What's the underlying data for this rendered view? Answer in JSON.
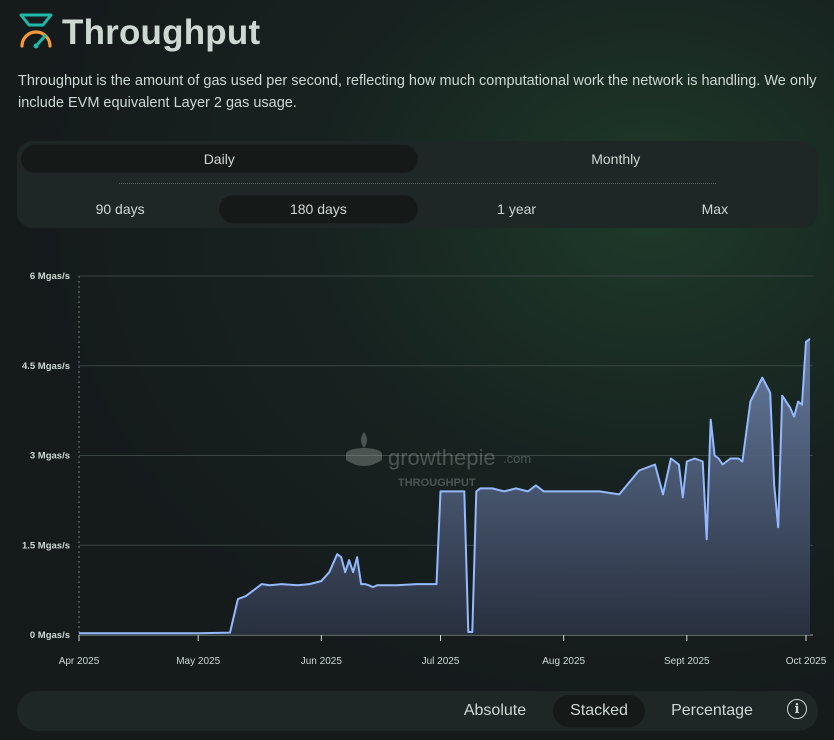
{
  "header": {
    "title": "Throughput",
    "icon": "throughput-gauge-icon"
  },
  "description": "Throughput is the amount of gas used per second, reflecting how much computational work the network is handling. We only include EVM equivalent Layer 2 gas usage.",
  "interval_tabs": [
    {
      "label": "Daily",
      "active": true
    },
    {
      "label": "Monthly",
      "active": false
    }
  ],
  "range_tabs": [
    {
      "label": "90 days",
      "active": false
    },
    {
      "label": "180 days",
      "active": true
    },
    {
      "label": "1 year",
      "active": false
    },
    {
      "label": "Max",
      "active": false
    }
  ],
  "watermark": {
    "brand": "growthepie",
    "suffix": ".com",
    "subtitle": "THROUGHPUT"
  },
  "display_modes": [
    {
      "label": "Absolute",
      "active": false
    },
    {
      "label": "Stacked",
      "active": true
    },
    {
      "label": "Percentage",
      "active": false
    }
  ],
  "info_label": "i",
  "colors": {
    "line": "#94b9ff",
    "fill_top": "#6b80a6",
    "fill_bottom": "#2a3242",
    "grid": "#3b4542",
    "text": "#cdd8d3"
  },
  "chart_data": {
    "type": "area",
    "title": "",
    "xlabel": "",
    "ylabel": "",
    "ylim": [
      0,
      6
    ],
    "yticks": [
      0,
      1.5,
      3,
      4.5,
      6
    ],
    "ytick_labels": [
      "0 Mgas/s",
      "1.5 Mgas/s",
      "3 Mgas/s",
      "4.5 Mgas/s",
      "6 Mgas/s"
    ],
    "x_start": "2025-04-01",
    "xticks": [
      "2025-04-01",
      "2025-05-01",
      "2025-06-01",
      "2025-07-01",
      "2025-08-01",
      "2025-09-01",
      "2025-10-01"
    ],
    "xtick_labels": [
      "Apr 2025",
      "May 2025",
      "Jun 2025",
      "Jul 2025",
      "Aug 2025",
      "Sept 2025",
      "Oct 2025"
    ],
    "grid": true,
    "legend": "none",
    "series": [
      {
        "x": [
          "2025-04-01",
          "2025-04-10",
          "2025-04-20",
          "2025-05-01",
          "2025-05-09",
          "2025-05-11",
          "2025-05-13",
          "2025-05-15",
          "2025-05-17",
          "2025-05-19",
          "2025-05-22",
          "2025-05-26",
          "2025-05-29",
          "2025-06-01",
          "2025-06-03",
          "2025-06-05",
          "2025-06-06",
          "2025-06-07",
          "2025-06-08",
          "2025-06-09",
          "2025-06-10",
          "2025-06-11",
          "2025-06-12",
          "2025-06-13",
          "2025-06-14",
          "2025-06-15",
          "2025-06-17",
          "2025-06-20",
          "2025-06-25",
          "2025-06-30",
          "2025-07-01",
          "2025-07-02",
          "2025-07-07",
          "2025-07-08",
          "2025-07-09",
          "2025-07-10",
          "2025-07-11",
          "2025-07-12",
          "2025-07-14",
          "2025-07-17",
          "2025-07-20",
          "2025-07-23",
          "2025-07-25",
          "2025-07-27",
          "2025-07-29",
          "2025-07-31",
          "2025-08-05",
          "2025-08-10",
          "2025-08-15",
          "2025-08-20",
          "2025-08-22",
          "2025-08-24",
          "2025-08-26",
          "2025-08-28",
          "2025-08-30",
          "2025-08-31",
          "2025-09-01",
          "2025-09-03",
          "2025-09-05",
          "2025-09-06",
          "2025-09-07",
          "2025-09-08",
          "2025-09-09",
          "2025-09-10",
          "2025-09-12",
          "2025-09-13",
          "2025-09-14",
          "2025-09-15",
          "2025-09-17",
          "2025-09-20",
          "2025-09-22",
          "2025-09-23",
          "2025-09-24",
          "2025-09-25",
          "2025-09-26",
          "2025-09-27",
          "2025-09-28",
          "2025-09-29",
          "2025-09-30",
          "2025-10-01",
          "2025-10-02"
        ],
        "values": [
          0.03,
          0.03,
          0.03,
          0.03,
          0.04,
          0.6,
          0.65,
          0.75,
          0.85,
          0.83,
          0.85,
          0.83,
          0.85,
          0.9,
          1.05,
          1.35,
          1.3,
          1.05,
          1.25,
          1.05,
          1.3,
          0.85,
          0.85,
          0.83,
          0.8,
          0.83,
          0.83,
          0.83,
          0.85,
          0.85,
          2.4,
          2.4,
          2.4,
          0.05,
          0.05,
          2.4,
          2.45,
          2.45,
          2.45,
          2.4,
          2.45,
          2.4,
          2.5,
          2.4,
          2.4,
          2.4,
          2.4,
          2.4,
          2.35,
          2.75,
          2.8,
          2.85,
          2.35,
          2.95,
          2.85,
          2.3,
          2.9,
          2.95,
          2.9,
          1.6,
          3.6,
          3.0,
          2.95,
          2.85,
          2.95,
          2.95,
          2.95,
          2.9,
          3.9,
          4.3,
          4.05,
          2.5,
          1.8,
          4.0,
          3.9,
          3.8,
          3.65,
          3.9,
          3.85,
          4.9,
          4.95
        ]
      }
    ]
  }
}
